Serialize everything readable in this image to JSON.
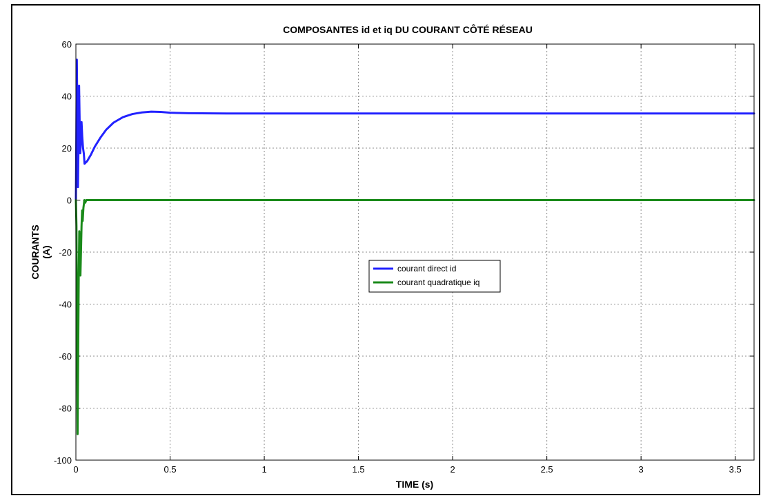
{
  "chart_data": {
    "type": "line",
    "title": "COMPOSANTES id et iq DU COURANT CÔTÉ RÉSEAU",
    "xlabel": "TIME (s)",
    "ylabel_lines": [
      "COURANTS",
      "(A)"
    ],
    "xlim": [
      0,
      3.6
    ],
    "ylim": [
      -100,
      60
    ],
    "x_ticks": [
      0,
      0.5,
      1,
      1.5,
      2,
      2.5,
      3,
      3.5
    ],
    "x_tick_labels": [
      "0",
      "0.5",
      "1",
      "1.5",
      "2",
      "2.5",
      "3",
      "3.5"
    ],
    "y_ticks": [
      60,
      40,
      20,
      0,
      -20,
      -40,
      -60,
      -80,
      -100
    ],
    "y_tick_labels": [
      "60",
      "40",
      "20",
      "0",
      "-20",
      "-40",
      "-60",
      "-80",
      "-100"
    ],
    "grid": true,
    "legend_position": "center",
    "series": [
      {
        "name": "courant direct id",
        "color": "#2222ff",
        "points": [
          [
            0,
            0
          ],
          [
            0.002,
            20
          ],
          [
            0.005,
            54
          ],
          [
            0.008,
            30
          ],
          [
            0.011,
            5
          ],
          [
            0.014,
            22
          ],
          [
            0.017,
            44
          ],
          [
            0.02,
            30
          ],
          [
            0.023,
            18
          ],
          [
            0.027,
            23
          ],
          [
            0.03,
            30
          ],
          [
            0.034,
            24
          ],
          [
            0.038,
            20
          ],
          [
            0.042,
            18
          ],
          [
            0.046,
            14
          ],
          [
            0.06,
            15
          ],
          [
            0.08,
            17.5
          ],
          [
            0.1,
            20.5
          ],
          [
            0.13,
            24
          ],
          [
            0.16,
            27
          ],
          [
            0.2,
            29.8
          ],
          [
            0.25,
            31.9
          ],
          [
            0.3,
            33.1
          ],
          [
            0.35,
            33.7
          ],
          [
            0.4,
            34
          ],
          [
            0.45,
            33.9
          ],
          [
            0.5,
            33.6
          ],
          [
            0.6,
            33.4
          ],
          [
            0.8,
            33.3
          ],
          [
            1.0,
            33.3
          ],
          [
            1.5,
            33.3
          ],
          [
            2.0,
            33.3
          ],
          [
            2.5,
            33.3
          ],
          [
            3.0,
            33.3
          ],
          [
            3.5,
            33.3
          ],
          [
            3.6,
            33.3
          ]
        ]
      },
      {
        "name": "courant quadratique iq",
        "color": "#1a8a1a",
        "points": [
          [
            0,
            0
          ],
          [
            0.003,
            -10
          ],
          [
            0.006,
            -50
          ],
          [
            0.009,
            -90
          ],
          [
            0.012,
            -60
          ],
          [
            0.015,
            -30
          ],
          [
            0.018,
            -12
          ],
          [
            0.021,
            -22
          ],
          [
            0.024,
            -29
          ],
          [
            0.027,
            -20
          ],
          [
            0.03,
            -10
          ],
          [
            0.033,
            -4
          ],
          [
            0.036,
            -8
          ],
          [
            0.04,
            -3
          ],
          [
            0.045,
            0
          ],
          [
            0.05,
            -1
          ],
          [
            0.055,
            0
          ],
          [
            0.1,
            0
          ],
          [
            0.5,
            0
          ],
          [
            1.0,
            0
          ],
          [
            2.0,
            0
          ],
          [
            3.0,
            0
          ],
          [
            3.6,
            0
          ]
        ]
      }
    ]
  }
}
